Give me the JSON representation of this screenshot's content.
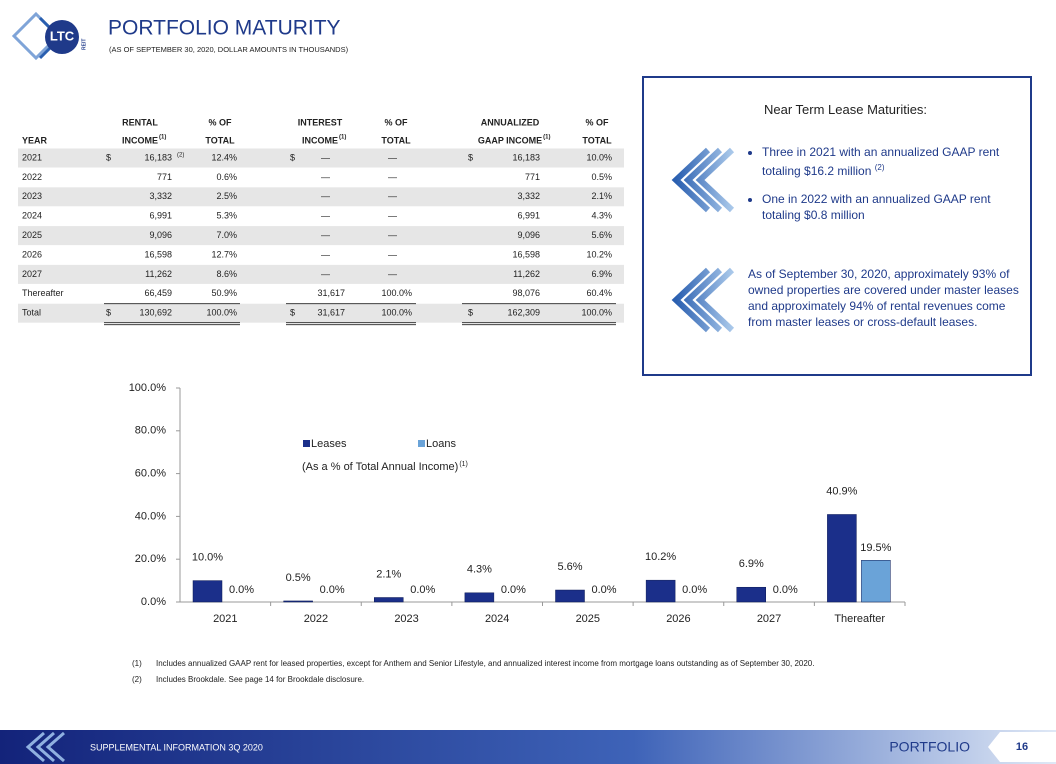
{
  "logo": {
    "text": "LTC",
    "sub": "REIT"
  },
  "header": {
    "title": "PORTFOLIO MATURITY",
    "subtitle": "(AS OF SEPTEMBER 30, 2020, DOLLAR AMOUNTS IN THOUSANDS)"
  },
  "table": {
    "header_top": [
      "RENTAL",
      "% OF",
      "INTEREST",
      "% OF",
      "ANNUALIZED",
      "% OF"
    ],
    "header_bottom": [
      {
        "text": "YEAR"
      },
      {
        "text": "INCOME",
        "sup": "(1)"
      },
      {
        "text": "TOTAL"
      },
      {
        "text": "INCOME",
        "sup": "(1)"
      },
      {
        "text": "TOTAL"
      },
      {
        "text": "GAAP INCOME",
        "sup": "(1)"
      },
      {
        "text": "TOTAL"
      }
    ],
    "rows": [
      [
        "2021",
        "$",
        "16,183",
        "12.4%",
        "$",
        "—",
        "—",
        "$",
        "16,183",
        "10.0%"
      ],
      [
        "2022",
        null,
        "771",
        "0.6%",
        null,
        "—",
        "—",
        null,
        "771",
        "0.5%"
      ],
      [
        "2023",
        null,
        "3,332",
        "2.5%",
        null,
        "—",
        "—",
        null,
        "3,332",
        "2.1%"
      ],
      [
        "2024",
        null,
        "6,991",
        "5.3%",
        null,
        "—",
        "—",
        null,
        "6,991",
        "4.3%"
      ],
      [
        "2025",
        null,
        "9,096",
        "7.0%",
        null,
        "—",
        "—",
        null,
        "9,096",
        "5.6%"
      ],
      [
        "2026",
        null,
        "16,598",
        "12.7%",
        null,
        "—",
        "—",
        null,
        "16,598",
        "10.2%"
      ],
      [
        "2027",
        null,
        "11,262",
        "8.6%",
        null,
        "—",
        "—",
        null,
        "11,262",
        "6.9%"
      ],
      [
        "Thereafter",
        null,
        "66,459",
        "50.9%",
        null,
        "31,617",
        "100.0%",
        null,
        "98,076",
        "60.4%"
      ],
      [
        "Total",
        "$",
        "130,692",
        "100.0%",
        "$",
        "31,617",
        "100.0%",
        "$",
        "162,309",
        "100.0%"
      ]
    ],
    "row_note": "(2)"
  },
  "callout": {
    "heading": "Near Term Lease Maturities:",
    "bullets": [
      {
        "text": "Three in 2021 with an annualized GAAP rent totaling $16.2 million",
        "sup": "(2)"
      },
      {
        "text": "One in 2022 with an annualized GAAP rent totaling $0.8 million"
      }
    ],
    "paragraph": "As of September 30, 2020, approximately 93% of owned properties are covered under master leases and approximately 94% of rental revenues come from master leases or cross-default leases."
  },
  "chart_data": {
    "type": "bar",
    "categories": [
      "2021",
      "2022",
      "2023",
      "2024",
      "2025",
      "2026",
      "2027",
      "Thereafter"
    ],
    "series": [
      {
        "name": "Leases",
        "color": "#1b2f8a",
        "values": [
          10.0,
          0.5,
          2.1,
          4.3,
          5.6,
          10.2,
          6.9,
          40.9
        ],
        "value_labels": [
          "10.0%",
          "0.5%",
          "2.1%",
          "4.3%",
          "5.6%",
          "10.2%",
          "6.9%",
          "40.9%"
        ]
      },
      {
        "name": "Loans",
        "color": "#6aa3d8",
        "values": [
          0.0,
          0.0,
          0.0,
          0.0,
          0.0,
          0.0,
          0.0,
          19.5
        ],
        "value_labels": [
          "0.0%",
          "0.0%",
          "0.0%",
          "0.0%",
          "0.0%",
          "0.0%",
          "0.0%",
          "19.5%"
        ]
      }
    ],
    "ylim": [
      0,
      100
    ],
    "yticks": [
      {
        "value": 0,
        "label": "0.0%"
      },
      {
        "value": 20,
        "label": "20.0%"
      },
      {
        "value": 40,
        "label": "40.0%"
      },
      {
        "value": 60,
        "label": "60.0%"
      },
      {
        "value": 80,
        "label": "80.0%"
      },
      {
        "value": 100,
        "label": "100.0%"
      }
    ],
    "annotation": "(As a % of Total Annual Income)",
    "annotation_note": "(1)"
  },
  "footnotes": [
    {
      "marker": "(1)",
      "text": "Includes annualized GAAP rent for leased properties, except for Anthem and Senior Lifestyle, and annualized interest income from mortgage loans outstanding as of September 30, 2020."
    },
    {
      "marker": "(2)",
      "text": "Includes Brookdale. See page 14 for Brookdale disclosure."
    }
  ],
  "footer": {
    "left": "SUPPLEMENTAL INFORMATION 3Q 2020",
    "section": "PORTFOLIO",
    "page": "16"
  }
}
